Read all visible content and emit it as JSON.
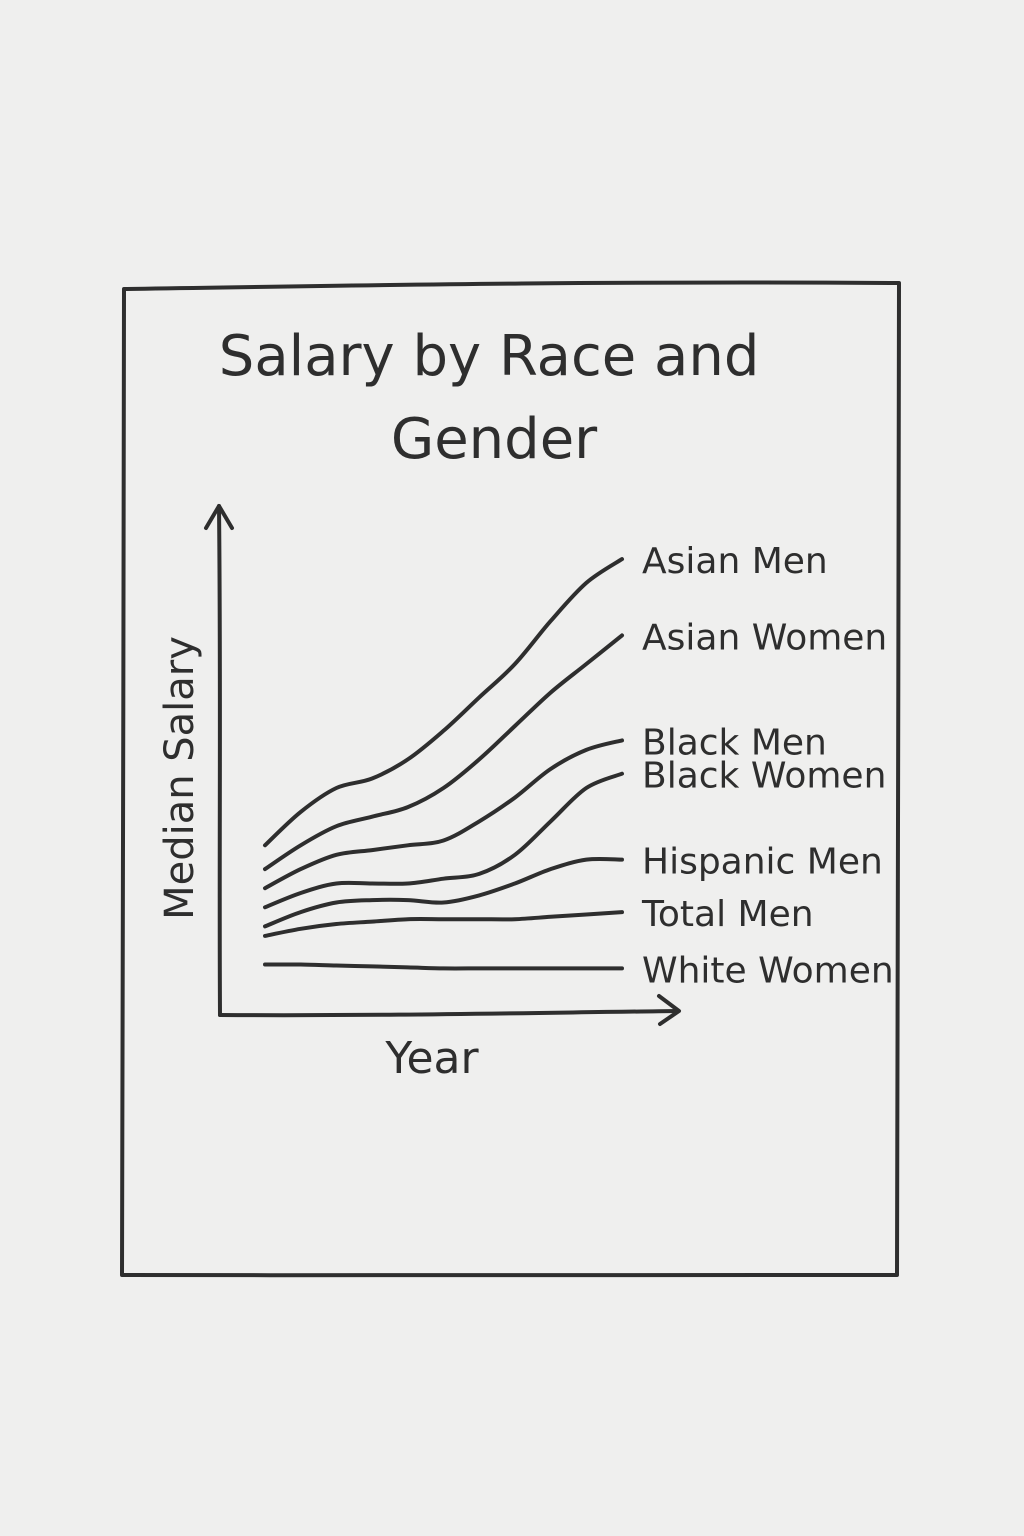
{
  "ink_color": "#2e2e2e",
  "paper_color": "#efefee",
  "chart_data": {
    "type": "line",
    "title": "Salary by Race and Gender",
    "xlabel": "Year",
    "ylabel": "Median Salary",
    "x": [
      0,
      1,
      2,
      3,
      4,
      5,
      6,
      7,
      8,
      9,
      10
    ],
    "ylim": [
      0,
      100
    ],
    "grid": false,
    "axis_ticks": false,
    "legend_placement": "right-end-labels",
    "series": [
      {
        "name": "Asian Men",
        "values": [
          23,
          30,
          35,
          37,
          41,
          47,
          54,
          61,
          70,
          78,
          83
        ]
      },
      {
        "name": "Asian Women",
        "values": [
          18,
          23,
          27,
          29,
          31,
          35,
          41,
          48,
          55,
          61,
          67
        ]
      },
      {
        "name": "Black Men",
        "values": [
          14,
          18,
          21,
          22,
          23,
          24,
          28,
          33,
          39,
          43,
          45
        ]
      },
      {
        "name": "Black Women",
        "values": [
          10,
          13,
          15,
          15,
          15,
          16,
          17,
          21,
          28,
          35,
          38
        ]
      },
      {
        "name": "Hispanic Men",
        "values": [
          6,
          9,
          11,
          11.5,
          11.5,
          11,
          12.5,
          15,
          18,
          20,
          20
        ]
      },
      {
        "name": "Total Men",
        "values": [
          4,
          5.5,
          6.5,
          7,
          7.5,
          7.5,
          7.5,
          7.5,
          8,
          8.5,
          9
        ]
      },
      {
        "name": "White Women",
        "values": [
          -2,
          -2,
          -2.2,
          -2.4,
          -2.6,
          -2.8,
          -2.8,
          -2.8,
          -2.8,
          -2.8,
          -2.8
        ]
      }
    ]
  }
}
